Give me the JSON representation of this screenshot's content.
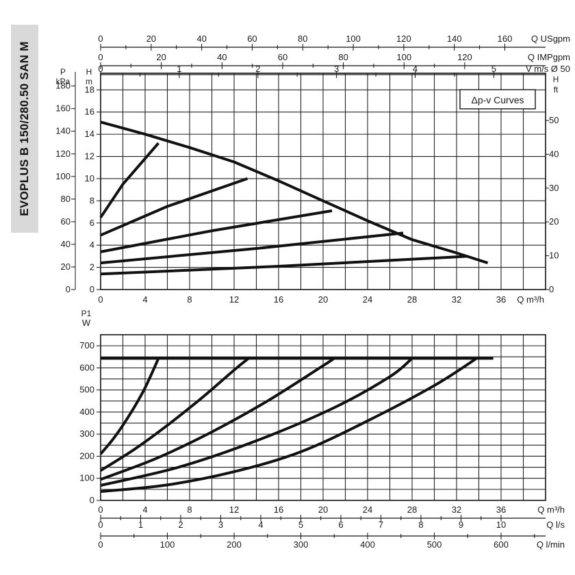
{
  "title": "EVOPLUS B 150/280.50 SAN M",
  "chart_data": [
    {
      "type": "line",
      "legend_label": "Δp-v Curves",
      "legend_placement": "top-right",
      "grid": true,
      "xlabel": "Q m³/h",
      "x_ticks": [
        "0",
        "4",
        "8",
        "12",
        "16",
        "20",
        "24",
        "28",
        "32",
        "36"
      ],
      "xlim": [
        0,
        40
      ],
      "top_axes": [
        {
          "label": "Q USgpm",
          "ticks": [
            "0",
            "20",
            "40",
            "60",
            "80",
            "100",
            "120",
            "140",
            "160"
          ]
        },
        {
          "label": "Q IMPgpm",
          "ticks": [
            "0",
            "20",
            "40",
            "60",
            "80",
            "100",
            "120"
          ]
        },
        {
          "label": "V m/s Ø 50",
          "ticks": [
            "0",
            "1",
            "2",
            "3",
            "4",
            "5"
          ]
        }
      ],
      "ylabel_left_kpa": "P kPa",
      "y_ticks_kpa": [
        "0",
        "20",
        "40",
        "60",
        "80",
        "100",
        "120",
        "140",
        "160",
        "180"
      ],
      "ylabel_left_m": "H m",
      "y_ticks_m": [
        "0",
        "2",
        "4",
        "6",
        "8",
        "10",
        "12",
        "14",
        "16",
        "18"
      ],
      "ylabel_right": "H ft",
      "y_ticks_ft": [
        "0",
        "10",
        "20",
        "30",
        "40",
        "50"
      ],
      "ylim": [
        0,
        19.5
      ],
      "series": [
        {
          "x": [
            0,
            4,
            8,
            12,
            16,
            20,
            24,
            28,
            32,
            34.8
          ],
          "y": [
            15.1,
            14.0,
            12.8,
            11.5,
            9.8,
            8.0,
            6.2,
            4.5,
            3.3,
            2.4
          ]
        },
        {
          "x": [
            0,
            2,
            5.2
          ],
          "y": [
            6.5,
            9.5,
            13.2
          ]
        },
        {
          "x": [
            0,
            6,
            13.2
          ],
          "y": [
            4.9,
            7.5,
            10.0
          ]
        },
        {
          "x": [
            0,
            10,
            20.8
          ],
          "y": [
            3.4,
            5.3,
            7.1
          ]
        },
        {
          "x": [
            0,
            14,
            27.2
          ],
          "y": [
            2.4,
            3.7,
            5.1
          ]
        },
        {
          "x": [
            0,
            16,
            33.0
          ],
          "y": [
            1.4,
            2.1,
            3.0
          ]
        }
      ]
    },
    {
      "type": "line",
      "grid": true,
      "ylabel": "P1 W",
      "y_ticks": [
        "0",
        "100",
        "200",
        "300",
        "400",
        "500",
        "600",
        "700"
      ],
      "ylim": [
        0,
        750
      ],
      "xlim": [
        0,
        40
      ],
      "x_axes": [
        {
          "label": "Q m³/h",
          "ticks": [
            "0",
            "4",
            "8",
            "12",
            "16",
            "20",
            "24",
            "28",
            "32",
            "36"
          ]
        },
        {
          "label": "Q l/s",
          "ticks": [
            "0",
            "1",
            "2",
            "3",
            "4",
            "5",
            "6",
            "7",
            "8",
            "9",
            "10"
          ]
        },
        {
          "label": "Q l/min",
          "ticks": [
            "0",
            "100",
            "200",
            "300",
            "400",
            "500",
            "600"
          ]
        }
      ],
      "series": [
        {
          "x": [
            0,
            35.3
          ],
          "y": [
            643,
            643
          ]
        },
        {
          "x": [
            0,
            1,
            2,
            3,
            4,
            5.2
          ],
          "y": [
            210,
            270,
            340,
            420,
            510,
            643
          ]
        },
        {
          "x": [
            0,
            3,
            6,
            9,
            12,
            13.3
          ],
          "y": [
            135,
            230,
            340,
            460,
            590,
            643
          ]
        },
        {
          "x": [
            0,
            5,
            10,
            15,
            20,
            21.0
          ],
          "y": [
            95,
            190,
            310,
            450,
            610,
            643
          ]
        },
        {
          "x": [
            0,
            7,
            14,
            21,
            26,
            28.0
          ],
          "y": [
            68,
            150,
            270,
            420,
            560,
            643
          ]
        },
        {
          "x": [
            0,
            6,
            12,
            18,
            24,
            30,
            33.8
          ],
          "y": [
            40,
            70,
            130,
            220,
            360,
            520,
            643
          ]
        }
      ]
    }
  ]
}
